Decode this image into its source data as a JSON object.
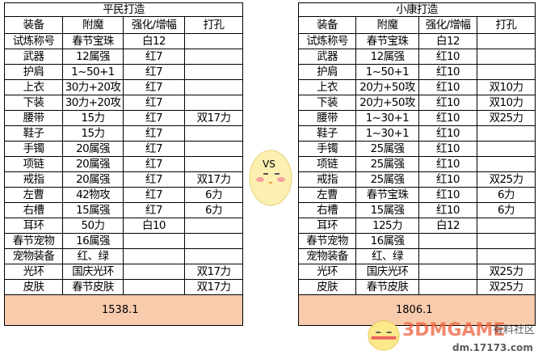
{
  "headers": [
    "装备",
    "附魔",
    "强化/增幅",
    "打孔"
  ],
  "left": {
    "title": "平民打造",
    "rows": [
      [
        "试炼称号",
        "春节宝珠",
        "白12",
        ""
      ],
      [
        "武器",
        "12属强",
        "红7",
        ""
      ],
      [
        "护肩",
        "1~50+1",
        "红7",
        ""
      ],
      [
        "上衣",
        "30力+20攻",
        "红7",
        ""
      ],
      [
        "下装",
        "30力+20攻",
        "红7",
        ""
      ],
      [
        "腰带",
        "15力",
        "红7",
        "双17力"
      ],
      [
        "鞋子",
        "15力",
        "红7",
        ""
      ],
      [
        "手镯",
        "20属强",
        "红7",
        ""
      ],
      [
        "项链",
        "20属强",
        "红7",
        ""
      ],
      [
        "戒指",
        "20属强",
        "红7",
        "双17力"
      ],
      [
        "左曹",
        "42物攻",
        "红7",
        "6力"
      ],
      [
        "右槽",
        "15属强",
        "红7",
        "6力"
      ],
      [
        "耳环",
        "50力",
        "白10",
        ""
      ],
      [
        "春节宠物",
        "16属强",
        "",
        ""
      ],
      [
        "宠物装备",
        "红、绿",
        "",
        ""
      ],
      [
        "光环",
        "国庆光环",
        "",
        "双17力"
      ],
      [
        "皮肤",
        "春节皮肤",
        "",
        "双17力"
      ]
    ],
    "total": "1538.1"
  },
  "right": {
    "title": "小康打造",
    "rows": [
      [
        "试炼称号",
        "春节宝珠",
        "白12",
        ""
      ],
      [
        "武器",
        "12属强",
        "红10",
        ""
      ],
      [
        "护肩",
        "1~50+1",
        "红10",
        ""
      ],
      [
        "上衣",
        "20力+50攻",
        "红10",
        "双10力"
      ],
      [
        "下装",
        "20力+50攻",
        "红10",
        "双10力"
      ],
      [
        "腰带",
        "1~30+1",
        "红10",
        "双25力"
      ],
      [
        "鞋子",
        "1~30+1",
        "红10",
        ""
      ],
      [
        "手镯",
        "25属强",
        "红10",
        ""
      ],
      [
        "项链",
        "25属强",
        "红10",
        ""
      ],
      [
        "戒指",
        "25属强",
        "红10",
        "双25力"
      ],
      [
        "左曹",
        "春节宝珠",
        "红10",
        "6力"
      ],
      [
        "右槽",
        "15属强",
        "红10",
        "6力"
      ],
      [
        "耳环",
        "125力",
        "白12",
        ""
      ],
      [
        "春节宠物",
        "16属强",
        "",
        ""
      ],
      [
        "宠物装备",
        "红、绿",
        "",
        ""
      ],
      [
        "光环",
        "国庆光环",
        "",
        "双25力"
      ],
      [
        "皮肤",
        "春节皮肤",
        "",
        "双25力"
      ]
    ],
    "total": "1806.1"
  },
  "vs_label": "VS",
  "watermark": {
    "logo": "3DMGAME",
    "site": "dm.17173.com",
    "community": "有料社区"
  }
}
